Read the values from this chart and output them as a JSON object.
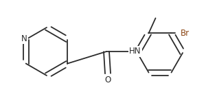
{
  "bg_color": "#ffffff",
  "line_color": "#2b2b2b",
  "bond_lw": 1.3,
  "dbo": 0.006,
  "fontsize": 8.5,
  "N_color": "#2b2b2b",
  "O_color": "#2b2b2b",
  "Br_color": "#8B4513",
  "figsize": [
    3.16,
    1.5
  ],
  "dpi": 100,
  "N_label": "N",
  "O_label": "O",
  "HN_label": "HN",
  "Br_label": "Br"
}
